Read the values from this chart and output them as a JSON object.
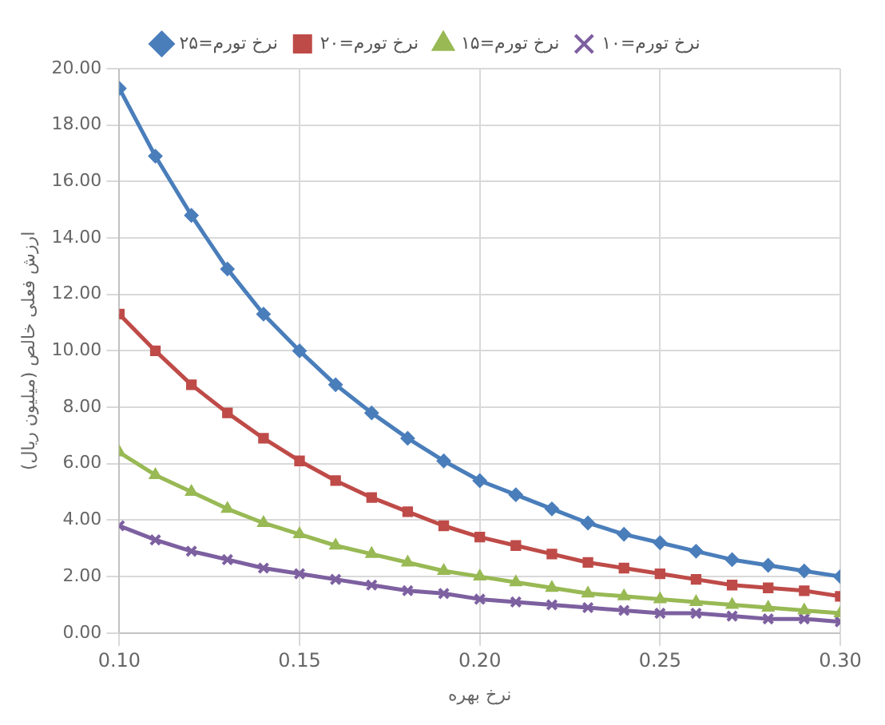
{
  "chart_data": {
    "type": "line",
    "xlabel": "نرخ بهره",
    "ylabel": "ارزش فعلی خالص (میلیون ریال)",
    "x": [
      0.1,
      0.11,
      0.12,
      0.13,
      0.14,
      0.15,
      0.16,
      0.17,
      0.18,
      0.19,
      0.2,
      0.21,
      0.22,
      0.23,
      0.24,
      0.25,
      0.26,
      0.27,
      0.28,
      0.29,
      0.3
    ],
    "series": [
      {
        "name": "نرخ تورم=۲۵",
        "color": "#4a7ebb",
        "marker": "diamond",
        "values": [
          19.3,
          16.9,
          14.8,
          12.9,
          11.3,
          10.0,
          8.8,
          7.8,
          6.9,
          6.1,
          5.4,
          4.9,
          4.4,
          3.9,
          3.5,
          3.2,
          2.9,
          2.6,
          2.4,
          2.2,
          2.0
        ]
      },
      {
        "name": "نرخ تورم=۲۰",
        "color": "#be4b48",
        "marker": "square",
        "values": [
          11.3,
          10.0,
          8.8,
          7.8,
          6.9,
          6.1,
          5.4,
          4.8,
          4.3,
          3.8,
          3.4,
          3.1,
          2.8,
          2.5,
          2.3,
          2.1,
          1.9,
          1.7,
          1.6,
          1.5,
          1.3
        ]
      },
      {
        "name": "نرخ تورم=۱۵",
        "color": "#98b954",
        "marker": "triangle",
        "values": [
          6.4,
          5.6,
          5.0,
          4.4,
          3.9,
          3.5,
          3.1,
          2.8,
          2.5,
          2.2,
          2.0,
          1.8,
          1.6,
          1.4,
          1.3,
          1.2,
          1.1,
          1.0,
          0.9,
          0.8,
          0.7
        ]
      },
      {
        "name": "نرخ تورم=۱۰",
        "color": "#7d60a0",
        "marker": "cross",
        "values": [
          3.8,
          3.3,
          2.9,
          2.6,
          2.3,
          2.1,
          1.9,
          1.7,
          1.5,
          1.4,
          1.2,
          1.1,
          1.0,
          0.9,
          0.8,
          0.7,
          0.7,
          0.6,
          0.5,
          0.5,
          0.4
        ]
      }
    ],
    "xlim": [
      0.1,
      0.3
    ],
    "xticks": [
      {
        "value": 0.1,
        "label": "0.10"
      },
      {
        "value": 0.15,
        "label": "0.15"
      },
      {
        "value": 0.2,
        "label": "0.20"
      },
      {
        "value": 0.25,
        "label": "0.25"
      },
      {
        "value": 0.3,
        "label": "0.30"
      }
    ],
    "ylim": [
      0,
      20
    ],
    "yticks": [
      {
        "value": 0,
        "label": "0.00"
      },
      {
        "value": 2,
        "label": "2.00"
      },
      {
        "value": 4,
        "label": "4.00"
      },
      {
        "value": 6,
        "label": "6.00"
      },
      {
        "value": 8,
        "label": "8.00"
      },
      {
        "value": 10,
        "label": "10.00"
      },
      {
        "value": 12,
        "label": "12.00"
      },
      {
        "value": 14,
        "label": "14.00"
      },
      {
        "value": 16,
        "label": "16.00"
      },
      {
        "value": 18,
        "label": "18.00"
      },
      {
        "value": 20,
        "label": "20.00"
      }
    ],
    "grid": true,
    "legend": "top"
  }
}
